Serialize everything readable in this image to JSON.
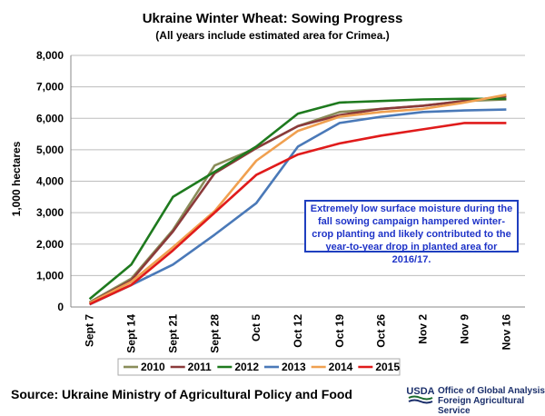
{
  "chart_data": {
    "type": "line",
    "title": "Ukraine Winter Wheat: Sowing Progress",
    "subtitle": "(All years include estimated area for Crimea.)",
    "ylabel": "1,000 hectares",
    "xlabel": "",
    "ylim": [
      0,
      8000
    ],
    "yticks": [
      0,
      1000,
      2000,
      3000,
      4000,
      5000,
      6000,
      7000,
      8000
    ],
    "ytick_labels": [
      "0",
      "1,000",
      "2,000",
      "3,000",
      "4,000",
      "5,000",
      "6,000",
      "7,000",
      "8,000"
    ],
    "categories": [
      "Sept 7",
      "Sept 14",
      "Sept 21",
      "Sept 28",
      "Oct 5",
      "Oct 12",
      "Oct 19",
      "Oct 26",
      "Nov 2",
      "Nov 9",
      "Nov 16"
    ],
    "grid": "horizontal",
    "legend_position": "bottom",
    "series": [
      {
        "name": "2010",
        "color": "#8a8d5a",
        "values": [
          150,
          900,
          2450,
          4500,
          5050,
          5750,
          6200,
          6300,
          6400,
          6550,
          6600
        ]
      },
      {
        "name": "2011",
        "color": "#8b3a3a",
        "values": [
          130,
          850,
          2400,
          4250,
          5050,
          5750,
          6100,
          6300,
          6400,
          6550,
          6700
        ]
      },
      {
        "name": "2012",
        "color": "#1e7a1e",
        "values": [
          250,
          1350,
          3500,
          4300,
          5100,
          6150,
          6500,
          6550,
          6600,
          6620,
          6620
        ]
      },
      {
        "name": "2013",
        "color": "#4a79b8",
        "values": [
          80,
          700,
          1350,
          2300,
          3300,
          5100,
          5850,
          6050,
          6200,
          6250,
          6280
        ]
      },
      {
        "name": "2014",
        "color": "#f0a050",
        "values": [
          120,
          800,
          1900,
          3050,
          4650,
          5600,
          6050,
          6200,
          6300,
          6500,
          6750
        ]
      },
      {
        "name": "2015",
        "color": "#e01b1b",
        "values": [
          90,
          700,
          1800,
          3000,
          4200,
          4850,
          5200,
          5450,
          5650,
          5850,
          5850
        ]
      }
    ],
    "annotation": "Extremely low surface moisture during the fall sowing campaign hampered winter-crop planting and likely contributed to the year-to-year drop in planted area for 2016/17."
  },
  "source": "Source:  Ukraine Ministry of Agricultural Policy and Food",
  "logo": {
    "text": "USDA",
    "line1": "Office of Global Analysis",
    "line2": "Foreign Agricultural Service"
  }
}
